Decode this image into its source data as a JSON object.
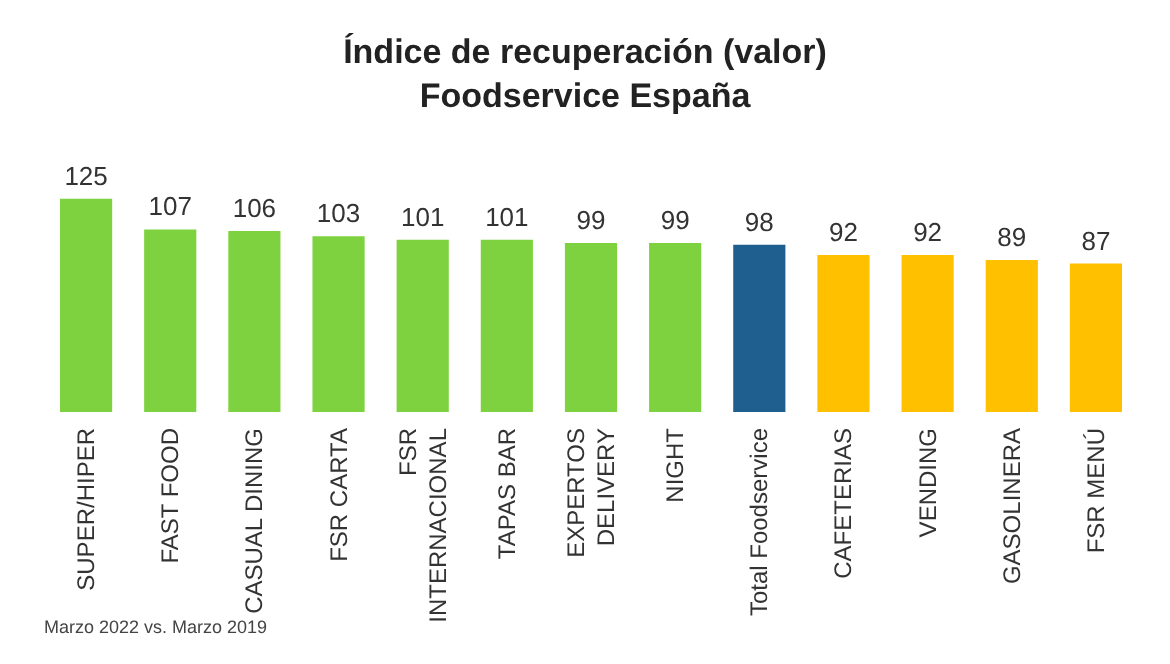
{
  "chart_data": {
    "type": "bar",
    "title": "Índice de recuperación (valor)\nFoodservice España",
    "categories": [
      "SUPER/HIPER",
      "FAST FOOD",
      "CASUAL DINING",
      "FSR CARTA",
      "FSR\nINTERNACIONAL",
      "TAPAS BAR",
      "EXPERTOS\nDELIVERY",
      "NIGHT",
      "Total Foodservice",
      "CAFETERIAS",
      "VENDING",
      "GASOLINERA",
      "FSR MENÚ"
    ],
    "values": [
      125,
      107,
      106,
      103,
      101,
      101,
      99,
      99,
      98,
      92,
      92,
      89,
      87
    ],
    "colors": [
      "#7ed23f",
      "#7ed23f",
      "#7ed23f",
      "#7ed23f",
      "#7ed23f",
      "#7ed23f",
      "#7ed23f",
      "#7ed23f",
      "#1f5f8f",
      "#ffc000",
      "#ffc000",
      "#ffc000",
      "#ffc000"
    ],
    "data_labels": true,
    "annotations": [
      "Marzo 2022 vs. Marzo 2019"
    ]
  }
}
